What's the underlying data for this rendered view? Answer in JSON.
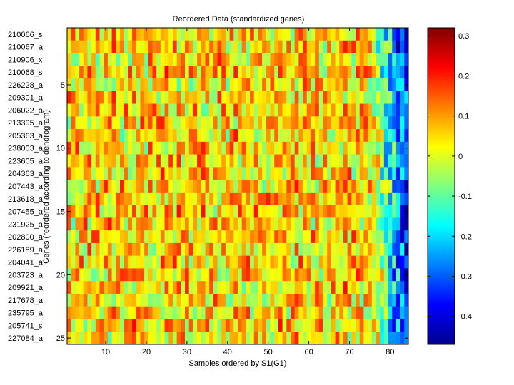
{
  "chart_data": {
    "type": "heatmap",
    "title": "Reordered Data (standardized genes)",
    "xlabel": "Samples ordered by S1(G1)",
    "ylabel": "Genes (reordered according to dendrogram)",
    "n_rows": 25,
    "n_cols": 84,
    "row_labels": [
      "210066_s",
      "210067_a",
      "210906_x",
      "210068_s",
      "226228_a",
      "209301_a",
      "206022_a",
      "213395_a",
      "205363_a",
      "238003_a",
      "223605_a",
      "204363_a",
      "207443_a",
      "213618_a",
      "207455_a",
      "231925_a",
      "202800_a",
      "226189_a",
      "204041_a",
      "203723_a",
      "209921_a",
      "217678_a",
      "235795_a",
      "205741_s",
      "227084_a"
    ],
    "x_ticks": [
      10,
      20,
      30,
      40,
      50,
      60,
      70,
      80
    ],
    "x_tick_labels": [
      "10",
      "20",
      "30",
      "40",
      "50",
      "60",
      "70",
      "80"
    ],
    "y_ticks": [
      5,
      10,
      15,
      20,
      25
    ],
    "y_tick_labels": [
      "5",
      "10",
      "15",
      "20",
      "25"
    ],
    "xlim": [
      0.5,
      84.5
    ],
    "ylim": [
      0.5,
      25.5
    ],
    "color_range": [
      -0.47,
      0.32
    ],
    "colorbar_ticks": [
      0.3,
      0.2,
      0.1,
      0,
      -0.1,
      -0.2,
      -0.3,
      -0.4
    ],
    "colorbar_tick_labels": [
      "0.3",
      "0.2",
      "0.1",
      "0",
      "-0.1",
      "-0.2",
      "-0.3",
      "-0.4"
    ],
    "colormap": "jet"
  }
}
